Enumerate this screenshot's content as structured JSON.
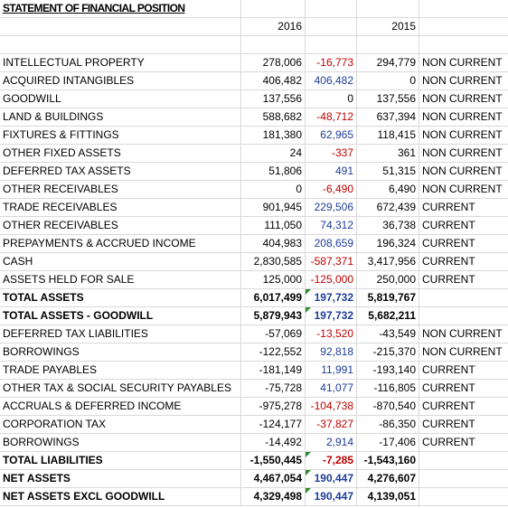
{
  "title": "STATEMENT OF FINANCIAL POSITION",
  "headers": {
    "year1": "2016",
    "year2": "2015"
  },
  "rows": [
    {
      "label": "INTELLECTUAL PROPERTY",
      "y2016": "278,006",
      "change": "-16,773",
      "y2015": "294,779",
      "cls": "NON CURRENT",
      "change_sign": "neg",
      "bold": false
    },
    {
      "label": "ACQUIRED INTANGIBLES",
      "y2016": "406,482",
      "change": "406,482",
      "y2015": "0",
      "cls": "NON CURRENT",
      "change_sign": "pos",
      "bold": false
    },
    {
      "label": "GOODWILL",
      "y2016": "137,556",
      "change": "0",
      "y2015": "137,556",
      "cls": "NON CURRENT",
      "change_sign": "zero",
      "bold": false
    },
    {
      "label": "LAND & BUILDINGS",
      "y2016": "588,682",
      "change": "-48,712",
      "y2015": "637,394",
      "cls": "NON CURRENT",
      "change_sign": "neg",
      "bold": false
    },
    {
      "label": "FIXTURES & FITTINGS",
      "y2016": "181,380",
      "change": "62,965",
      "y2015": "118,415",
      "cls": "NON CURRENT",
      "change_sign": "pos",
      "bold": false
    },
    {
      "label": "OTHER FIXED ASSETS",
      "y2016": "24",
      "change": "-337",
      "y2015": "361",
      "cls": "NON CURRENT",
      "change_sign": "neg",
      "bold": false
    },
    {
      "label": "DEFERRED TAX ASSETS",
      "y2016": "51,806",
      "change": "491",
      "y2015": "51,315",
      "cls": "NON CURRENT",
      "change_sign": "pos",
      "bold": false
    },
    {
      "label": "OTHER RECEIVABLES",
      "y2016": "0",
      "change": "-6,490",
      "y2015": "6,490",
      "cls": "NON CURRENT",
      "change_sign": "neg",
      "bold": false
    },
    {
      "label": "TRADE RECEIVABLES",
      "y2016": "901,945",
      "change": "229,506",
      "y2015": "672,439",
      "cls": "CURRENT",
      "change_sign": "pos",
      "bold": false
    },
    {
      "label": "OTHER RECEIVABLES",
      "y2016": "111,050",
      "change": "74,312",
      "y2015": "36,738",
      "cls": "CURRENT",
      "change_sign": "pos",
      "bold": false
    },
    {
      "label": "PREPAYMENTS & ACCRUED INCOME",
      "y2016": "404,983",
      "change": "208,659",
      "y2015": "196,324",
      "cls": "CURRENT",
      "change_sign": "pos",
      "bold": false
    },
    {
      "label": "CASH",
      "y2016": "2,830,585",
      "change": "-587,371",
      "y2015": "3,417,956",
      "cls": "CURRENT",
      "change_sign": "neg",
      "bold": false
    },
    {
      "label": "ASSETS HELD FOR SALE",
      "y2016": "125,000",
      "change": "-125,000",
      "y2015": "250,000",
      "cls": "CURRENT",
      "change_sign": "neg",
      "bold": false
    },
    {
      "label": "TOTAL ASSETS",
      "y2016": "6,017,499",
      "change": "197,732",
      "y2015": "5,819,767",
      "cls": "",
      "change_sign": "pos",
      "bold": true,
      "tri": true
    },
    {
      "label": "TOTAL ASSETS - GOODWILL",
      "y2016": "5,879,943",
      "change": "197,732",
      "y2015": "5,682,211",
      "cls": "",
      "change_sign": "pos",
      "bold": true,
      "tri": true
    },
    {
      "label": "DEFERRED TAX LIABILITIES",
      "y2016": "-57,069",
      "change": "-13,520",
      "y2015": "-43,549",
      "cls": "NON CURRENT",
      "change_sign": "neg",
      "bold": false
    },
    {
      "label": "BORROWINGS",
      "y2016": "-122,552",
      "change": "92,818",
      "y2015": "-215,370",
      "cls": "NON CURRENT",
      "change_sign": "pos",
      "bold": false
    },
    {
      "label": "TRADE PAYABLES",
      "y2016": "-181,149",
      "change": "11,991",
      "y2015": "-193,140",
      "cls": "CURRENT",
      "change_sign": "pos",
      "bold": false
    },
    {
      "label": "OTHER TAX & SOCIAL SECURITY PAYABLES",
      "y2016": "-75,728",
      "change": "41,077",
      "y2015": "-116,805",
      "cls": "CURRENT",
      "change_sign": "pos",
      "bold": false
    },
    {
      "label": "ACCRUALS & DEFERRED INCOME",
      "y2016": "-975,278",
      "change": "-104,738",
      "y2015": "-870,540",
      "cls": "CURRENT",
      "change_sign": "neg",
      "bold": false
    },
    {
      "label": "CORPORATION TAX",
      "y2016": "-124,177",
      "change": "-37,827",
      "y2015": "-86,350",
      "cls": "CURRENT",
      "change_sign": "neg",
      "bold": false
    },
    {
      "label": "BORROWINGS",
      "y2016": "-14,492",
      "change": "2,914",
      "y2015": "-17,406",
      "cls": "CURRENT",
      "change_sign": "pos",
      "bold": false
    },
    {
      "label": "TOTAL LIABILITIES",
      "y2016": "-1,550,445",
      "change": "-7,285",
      "y2015": "-1,543,160",
      "cls": "",
      "change_sign": "neg",
      "bold": true,
      "tri": true
    },
    {
      "label": "NET ASSETS",
      "y2016": "4,467,054",
      "change": "190,447",
      "y2015": "4,276,607",
      "cls": "",
      "change_sign": "pos",
      "bold": true,
      "tri": true
    },
    {
      "label": "NET ASSETS EXCL GOODWILL",
      "y2016": "4,329,498",
      "change": "190,447",
      "y2015": "4,139,051",
      "cls": "",
      "change_sign": "pos",
      "bold": true,
      "tri": true
    }
  ],
  "colors": {
    "negative": "#c00000",
    "positive": "#1f3d99",
    "grid": "#d9d9d9",
    "comment_marker": "#2e8b2e"
  }
}
